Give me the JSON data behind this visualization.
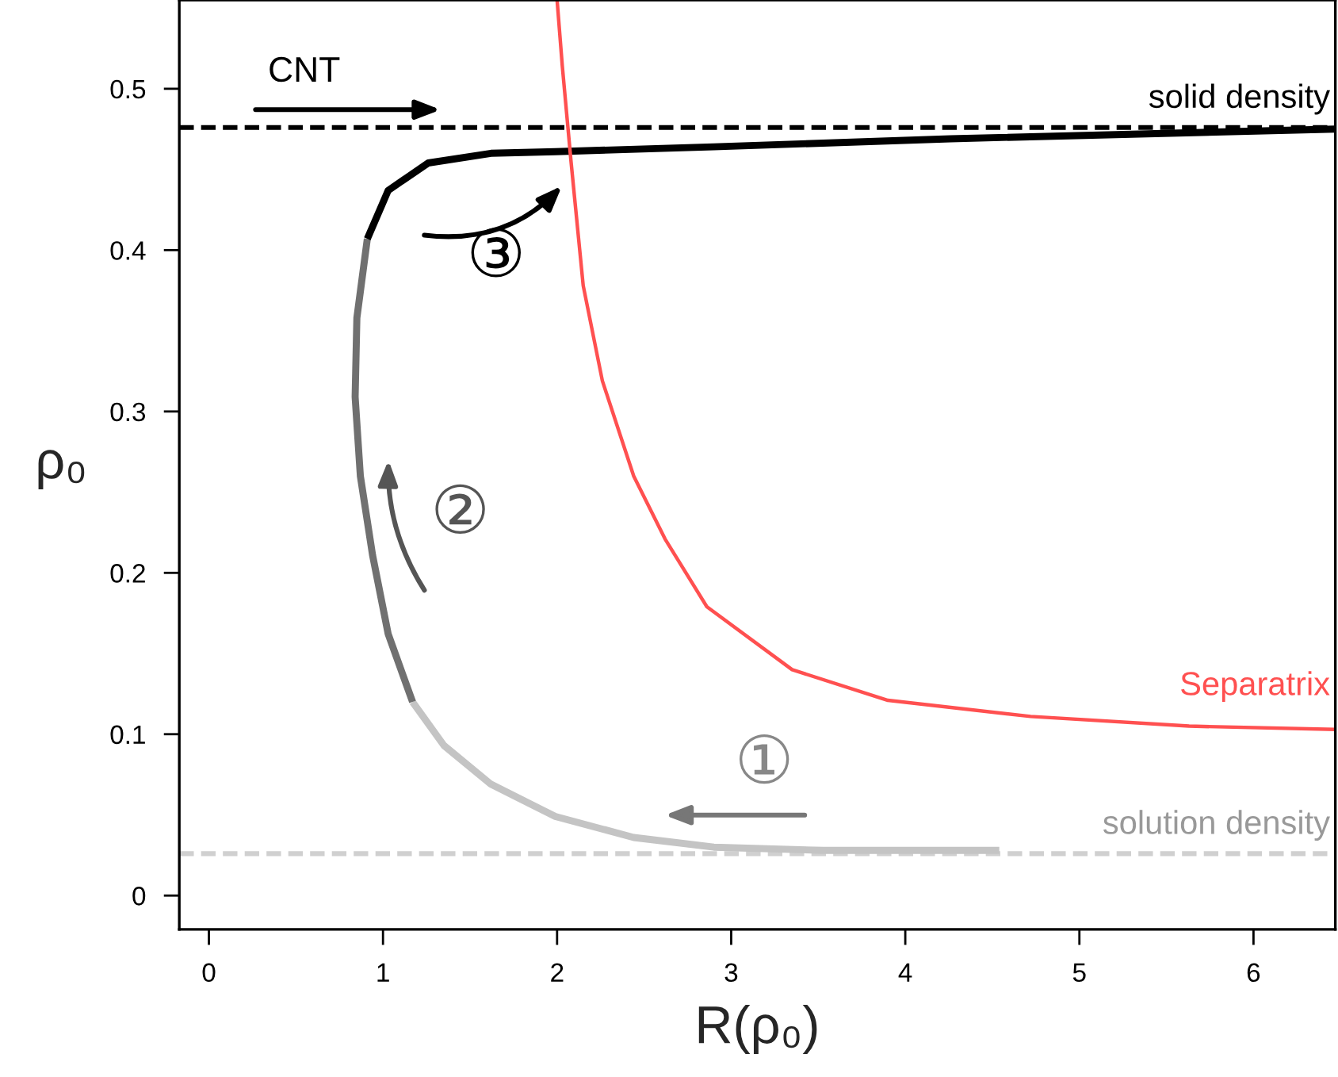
{
  "chart_data": {
    "type": "line",
    "xlabel": "R(ρ₀)",
    "ylabel": "ρ₀",
    "xlim": [
      -0.17,
      6.47
    ],
    "ylim": [
      -0.021,
      0.555
    ],
    "xticks": [
      0,
      1,
      2,
      3,
      4,
      5,
      6
    ],
    "yticks": [
      0,
      0.1,
      0.2,
      0.3,
      0.4,
      0.5
    ],
    "grid": false,
    "legend": false,
    "marker": "none",
    "line_style": "solid",
    "series": [
      {
        "color": "#c4c4c4",
        "x": [
          4.54,
          3.53,
          2.9,
          2.44,
          1.99,
          1.62,
          1.35,
          1.17
        ],
        "values": [
          0.028,
          0.028,
          0.03,
          0.036,
          0.049,
          0.069,
          0.093,
          0.12
        ]
      },
      {
        "color": "#707070",
        "x": [
          1.17,
          1.03,
          0.94,
          0.87,
          0.84,
          0.85,
          0.91
        ],
        "values": [
          0.12,
          0.162,
          0.211,
          0.26,
          0.309,
          0.358,
          0.407
        ]
      },
      {
        "color": "#000000",
        "x": [
          0.91,
          1.03,
          1.26,
          1.62,
          1.99,
          2.9,
          4.26,
          6.47
        ],
        "values": [
          0.407,
          0.437,
          0.454,
          0.46,
          0.461,
          0.464,
          0.469,
          0.475
        ]
      },
      {
        "name": "Separatrix",
        "color": "#ff5050",
        "x": [
          2.0,
          2.03,
          2.08,
          2.15,
          2.26,
          2.44,
          2.62,
          2.86,
          3.35,
          3.9,
          4.72,
          5.63,
          6.47
        ],
        "values": [
          0.555,
          0.514,
          0.455,
          0.378,
          0.319,
          0.26,
          0.221,
          0.179,
          0.14,
          0.121,
          0.111,
          0.105,
          0.103
        ]
      }
    ],
    "ref_lines": [
      {
        "axis": "y",
        "value": 0.476,
        "label": "solid density",
        "color": "#000000",
        "line_style": "dashed"
      },
      {
        "axis": "y",
        "value": 0.026,
        "label": "solution density",
        "color": "#d0d0d0",
        "line_style": "dashed"
      }
    ],
    "annotations": [
      "CNT",
      "①",
      "②",
      "③"
    ]
  }
}
